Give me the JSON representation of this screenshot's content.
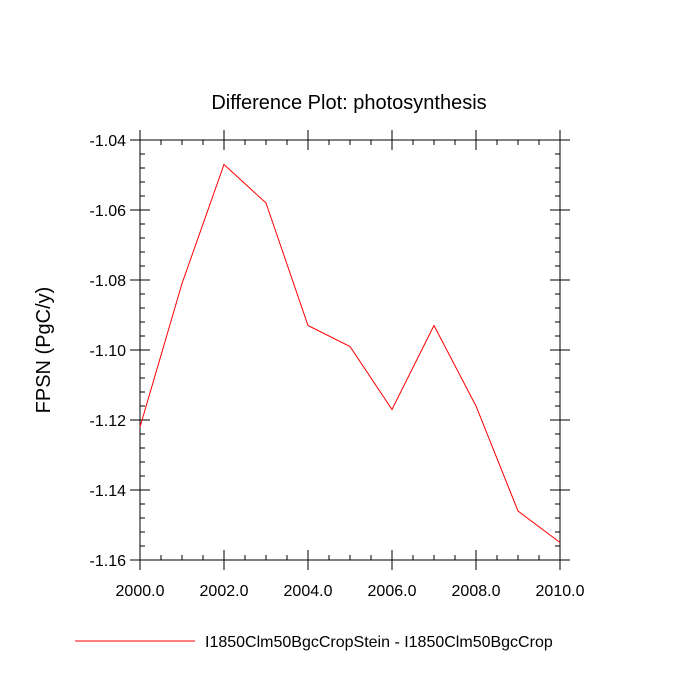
{
  "chart_data": {
    "type": "line",
    "title": "Difference Plot: photosynthesis",
    "xlabel": "",
    "ylabel": "FPSN  (PgC/y)",
    "xlim": [
      2000,
      2010
    ],
    "ylim": [
      -1.16,
      -1.04
    ],
    "x_ticks": [
      2000,
      2002,
      2004,
      2006,
      2008,
      2010
    ],
    "x_tick_labels": [
      "2000.0",
      "2002.0",
      "2004.0",
      "2006.0",
      "2008.0",
      "2010.0"
    ],
    "y_ticks": [
      -1.04,
      -1.06,
      -1.08,
      -1.1,
      -1.12,
      -1.14,
      -1.16
    ],
    "y_tick_labels": [
      "-1.04",
      "-1.06",
      "-1.08",
      "-1.10",
      "-1.12",
      "-1.14",
      "-1.16"
    ],
    "grid": false,
    "legend_position": "bottom",
    "series": [
      {
        "name": "I1850Clm50BgcCropStein - I1850Clm50BgcCrop",
        "color": "#ff0000",
        "x": [
          2000,
          2001,
          2002,
          2003,
          2004,
          2005,
          2006,
          2007,
          2008,
          2009,
          2010
        ],
        "y": [
          -1.122,
          -1.081,
          -1.047,
          -1.058,
          -1.093,
          -1.099,
          -1.117,
          -1.093,
          -1.116,
          -1.146,
          -1.155
        ]
      }
    ]
  }
}
